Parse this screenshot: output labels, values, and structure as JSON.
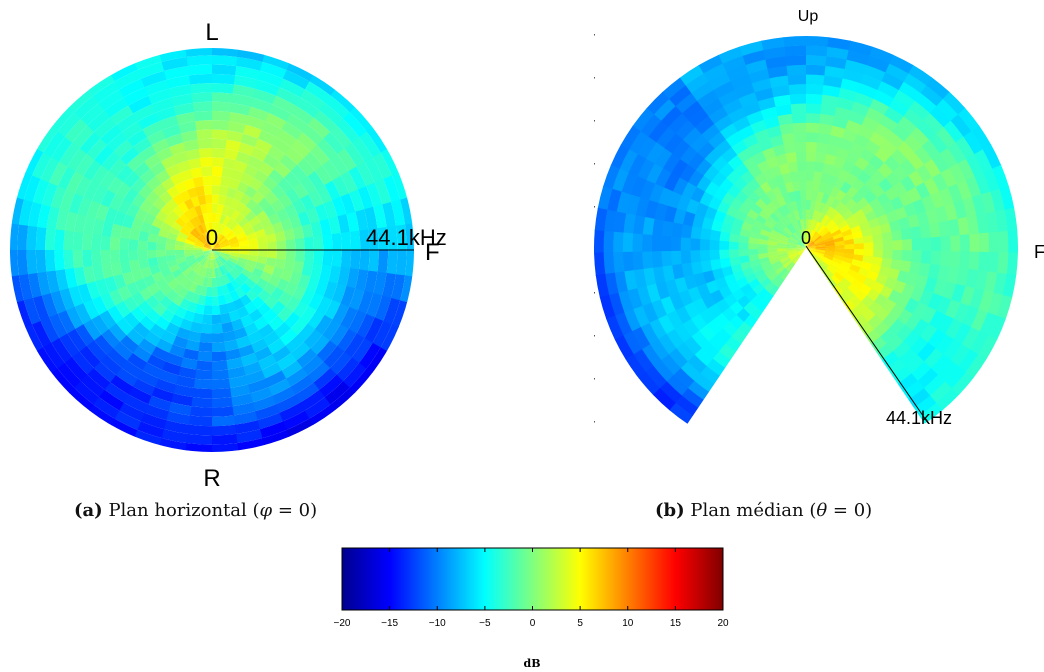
{
  "chart_data": [
    {
      "type": "heatmap",
      "projection": "polar",
      "title": "",
      "caption": {
        "label": "(a)",
        "text_before": "Plan horizontal (",
        "symbol": "φ",
        "text_after": " = 0)"
      },
      "radius_range": [
        0,
        44.1
      ],
      "radius_unit": "kHz",
      "center_label": "0",
      "radius_label": "44.1kHz",
      "direction_labels": {
        "top": "L",
        "right": "F",
        "bottom": "R"
      },
      "angle_range_deg": [
        0,
        360
      ],
      "grid": false,
      "colormap": "jet"
    },
    {
      "type": "heatmap",
      "projection": "polar",
      "title": "",
      "caption": {
        "label": "(b)",
        "text_before": "Plan médian (",
        "symbol": "θ",
        "text_after": " = 0)"
      },
      "radius_range": [
        0,
        44.1
      ],
      "radius_unit": "kHz",
      "center_label": "0",
      "radius_label": "44.1kHz",
      "direction_labels": {
        "top": "Up",
        "right": "F"
      },
      "angle_range_deg": [
        -60,
        240
      ],
      "grid": false,
      "colormap": "jet"
    }
  ],
  "colorbar": {
    "label": "dB",
    "range": [
      -20,
      20
    ],
    "ticks": [
      "−20",
      "−15",
      "−10",
      "−5",
      "0",
      "5",
      "10",
      "15",
      "20"
    ],
    "colormap": "jet"
  }
}
